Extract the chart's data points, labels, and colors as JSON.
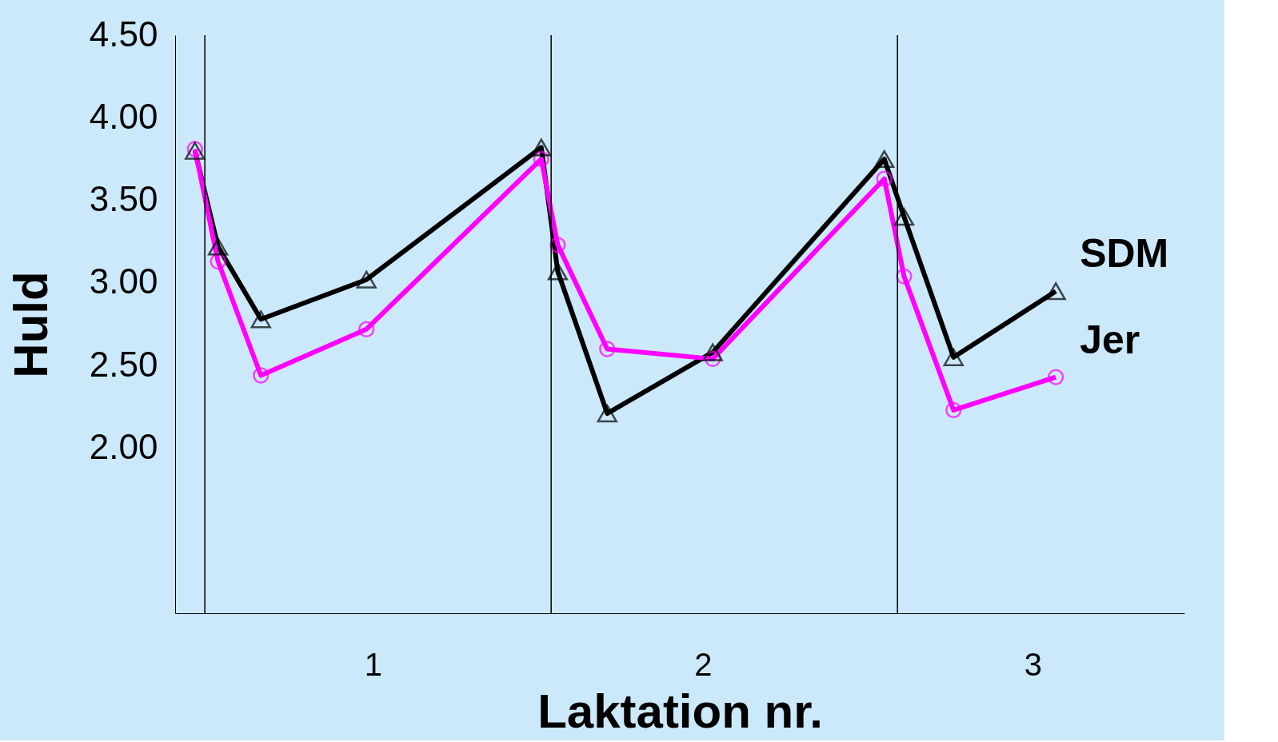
{
  "chart_data": {
    "type": "line",
    "xlabel": "Laktation nr.",
    "ylabel": "Huld",
    "x": [
      0.46,
      0.53,
      0.66,
      0.98,
      1.51,
      1.56,
      1.71,
      2.03,
      2.55,
      2.61,
      2.76,
      3.07
    ],
    "series": [
      {
        "name": "SDM",
        "color": "#000000",
        "marker": "triangle",
        "values": [
          3.8,
          3.22,
          2.78,
          3.02,
          3.82,
          3.07,
          2.21,
          2.58,
          3.75,
          3.4,
          2.55,
          2.95
        ]
      },
      {
        "name": "Jer",
        "color": "#ff00ff",
        "marker": "circle",
        "values": [
          3.81,
          3.13,
          2.44,
          2.72,
          3.75,
          3.23,
          2.6,
          2.54,
          3.63,
          3.04,
          2.23,
          2.43
        ]
      }
    ],
    "xlim": [
      0.4,
      3.46
    ],
    "xticks": [
      1,
      2,
      3
    ],
    "ylim": [
      1.0,
      4.5
    ],
    "yticks": [
      {
        "value": 2.0,
        "label": "2.00"
      },
      {
        "value": 2.5,
        "label": "2.50"
      },
      {
        "value": 3.0,
        "label": "3.00"
      },
      {
        "value": 3.5,
        "label": "3.50"
      },
      {
        "value": 4.0,
        "label": "4.00"
      },
      {
        "value": 4.5,
        "label": "4.50"
      }
    ],
    "ref_lines": [
      {
        "axis": "x",
        "value": 0.49,
        "color": "#000000"
      },
      {
        "axis": "x",
        "value": 1.54,
        "color": "#000000"
      },
      {
        "axis": "x",
        "value": 2.59,
        "color": "#000000"
      }
    ],
    "grid": false,
    "legend": false,
    "line_style": "solid"
  }
}
